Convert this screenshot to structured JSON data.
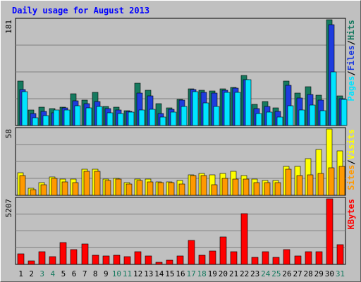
{
  "title": "Daily usage for August 2013",
  "chart_data": [
    {
      "type": "bar",
      "categories": [
        "1",
        "2",
        "3",
        "4",
        "5",
        "6",
        "7",
        "8",
        "9",
        "10",
        "11",
        "12",
        "13",
        "14",
        "15",
        "16",
        "17",
        "18",
        "19",
        "20",
        "21",
        "22",
        "23",
        "24",
        "25",
        "26",
        "27",
        "28",
        "29",
        "30",
        "31"
      ],
      "weekend_days": [
        "3",
        "4",
        "10",
        "11",
        "17",
        "18",
        "24",
        "25",
        "31"
      ],
      "ymax_label": "181",
      "ylim": [
        0,
        181
      ],
      "grid": true,
      "series": [
        {
          "name": "Hits",
          "color": "#157a5f",
          "values": [
            76,
            26,
            31,
            29,
            31,
            54,
            44,
            57,
            32,
            31,
            25,
            73,
            60,
            37,
            30,
            45,
            63,
            60,
            59,
            63,
            65,
            86,
            36,
            41,
            30,
            76,
            56,
            66,
            52,
            181,
            51
          ]
        },
        {
          "name": "Files",
          "color": "#1e3cde",
          "values": [
            61,
            20,
            24,
            22,
            30,
            42,
            37,
            41,
            29,
            26,
            24,
            56,
            51,
            20,
            28,
            43,
            62,
            57,
            56,
            60,
            64,
            79,
            29,
            33,
            24,
            69,
            47,
            53,
            43,
            172,
            46
          ]
        },
        {
          "name": "Pages",
          "color": "#00e4ff",
          "values": [
            58,
            13,
            17,
            26,
            27,
            34,
            30,
            33,
            22,
            20,
            23,
            27,
            28,
            14,
            23,
            33,
            58,
            39,
            32,
            57,
            57,
            78,
            21,
            23,
            14,
            34,
            27,
            35,
            25,
            92,
            45
          ]
        }
      ],
      "label_parts": [
        "Pages",
        "/",
        "Files",
        "/",
        "Hits"
      ]
    },
    {
      "type": "bar",
      "categories": [
        "1",
        "2",
        "3",
        "4",
        "5",
        "6",
        "7",
        "8",
        "9",
        "10",
        "11",
        "12",
        "13",
        "14",
        "15",
        "16",
        "17",
        "18",
        "19",
        "20",
        "21",
        "22",
        "23",
        "24",
        "25",
        "26",
        "27",
        "28",
        "29",
        "30",
        "31"
      ],
      "ymax_label": "58",
      "ylim": [
        0,
        58
      ],
      "grid": true,
      "series": [
        {
          "name": "Visits",
          "color": "#ffff00",
          "values": [
            20,
            6,
            11,
            16,
            14,
            14,
            23,
            23,
            14,
            15,
            11,
            14,
            14,
            12,
            12,
            13,
            18,
            19,
            18,
            19,
            21,
            17,
            14,
            13,
            13,
            25,
            25,
            32,
            40,
            58,
            39
          ]
        },
        {
          "name": "Sites",
          "color": "#ff9900",
          "values": [
            17,
            5,
            9,
            15,
            12,
            11,
            21,
            21,
            13,
            14,
            10,
            13,
            12,
            11,
            11,
            10,
            17,
            17,
            9,
            15,
            14,
            14,
            11,
            11,
            11,
            23,
            17,
            18,
            19,
            24,
            25
          ]
        }
      ],
      "label_parts": [
        "Sites",
        "/",
        "Visits"
      ]
    },
    {
      "type": "bar",
      "categories": [
        "1",
        "2",
        "3",
        "4",
        "5",
        "6",
        "7",
        "8",
        "9",
        "10",
        "11",
        "12",
        "13",
        "14",
        "15",
        "16",
        "17",
        "18",
        "19",
        "20",
        "21",
        "22",
        "23",
        "24",
        "25",
        "26",
        "27",
        "28",
        "29",
        "30",
        "31"
      ],
      "ymax_label": "5207",
      "ylim": [
        0,
        5207
      ],
      "grid": true,
      "series": [
        {
          "name": "KBytes",
          "color": "#ff0000",
          "values": [
            850,
            300,
            1000,
            600,
            1750,
            1200,
            1650,
            750,
            650,
            700,
            600,
            1000,
            650,
            150,
            350,
            650,
            1880,
            750,
            1050,
            2210,
            1010,
            4010,
            550,
            1000,
            550,
            1200,
            650,
            1000,
            1020,
            5207,
            1560
          ]
        }
      ],
      "label_parts": [
        "KBytes"
      ]
    }
  ],
  "colors": {
    "background": "#c0c0c0",
    "plot_background": "#c0c0c0",
    "grid": "#808080",
    "title": "#0000ff",
    "axis_text": "#000000",
    "weekend_text": "#157a5f",
    "separator": "#000000"
  }
}
